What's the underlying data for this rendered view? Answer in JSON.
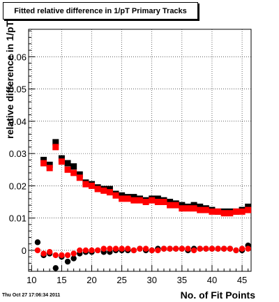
{
  "chart_data": {
    "type": "scatter",
    "title": "Fitted relative difference in 1/pT Primary Tracks",
    "xlabel": "No. of Fit Points",
    "ylabel": "relative difference in 1/pT",
    "xlim": [
      9.5,
      46.5
    ],
    "ylim": [
      -0.0065,
      0.0685
    ],
    "x_ticks": [
      10,
      15,
      20,
      25,
      30,
      35,
      40,
      45
    ],
    "y_ticks": [
      0,
      0.01,
      0.02,
      0.03,
      0.04,
      0.05,
      0.06
    ],
    "y_tick_labels": [
      "0",
      "0.01",
      "0.02",
      "0.03",
      "0.04",
      "0.05",
      "0.06"
    ],
    "grid": true,
    "legend": "none",
    "series": [
      {
        "marker": "square",
        "color": "#000000",
        "x": [
          12,
          13,
          14,
          15,
          16,
          17,
          18,
          19,
          20,
          21,
          22,
          23,
          24,
          25,
          26,
          27,
          28,
          29,
          30,
          31,
          32,
          33,
          34,
          35,
          36,
          37,
          38,
          39,
          40,
          41,
          42,
          43,
          44,
          45,
          46
        ],
        "y": [
          0.028,
          0.0265,
          0.0335,
          0.0285,
          0.027,
          0.026,
          0.0235,
          0.021,
          0.0205,
          0.0195,
          0.019,
          0.019,
          0.0175,
          0.017,
          0.0165,
          0.0165,
          0.016,
          0.0155,
          0.016,
          0.016,
          0.0155,
          0.015,
          0.0145,
          0.014,
          0.0135,
          0.014,
          0.0135,
          0.013,
          0.0125,
          0.012,
          0.012,
          0.012,
          0.012,
          0.0125,
          0.0135
        ]
      },
      {
        "marker": "square",
        "color": "#ff0000",
        "x": [
          12,
          13,
          14,
          15,
          16,
          17,
          18,
          19,
          20,
          21,
          22,
          23,
          24,
          25,
          26,
          27,
          28,
          29,
          30,
          31,
          32,
          33,
          34,
          35,
          36,
          37,
          38,
          39,
          40,
          41,
          42,
          43,
          44,
          45,
          46
        ],
        "y": [
          0.027,
          0.0255,
          0.032,
          0.0275,
          0.025,
          0.024,
          0.0225,
          0.0205,
          0.02,
          0.019,
          0.0185,
          0.018,
          0.017,
          0.016,
          0.016,
          0.0155,
          0.0155,
          0.015,
          0.0155,
          0.015,
          0.015,
          0.014,
          0.014,
          0.013,
          0.013,
          0.013,
          0.0125,
          0.0125,
          0.012,
          0.012,
          0.0115,
          0.0115,
          0.012,
          0.012,
          0.0125
        ]
      },
      {
        "marker": "circle",
        "color": "#000000",
        "x": [
          11,
          12,
          13,
          14,
          15,
          16,
          17,
          18,
          19,
          20,
          21,
          22,
          23,
          24,
          25,
          26,
          27,
          28,
          29,
          30,
          31,
          32,
          33,
          34,
          35,
          36,
          37,
          38,
          39,
          40,
          41,
          42,
          43,
          44,
          45,
          46
        ],
        "y": [
          0.0025,
          -0.0015,
          -0.001,
          -0.0055,
          -0.002,
          -0.0035,
          -0.0025,
          -0.001,
          -0.0005,
          -0.0005,
          0,
          -0.0005,
          -0.0005,
          0,
          0,
          0,
          0,
          0.0005,
          0,
          0,
          0.0005,
          0.0005,
          0.0005,
          0.0005,
          0.0005,
          0,
          0.0005,
          0.0005,
          0.0005,
          0.0005,
          0.0005,
          0.0005,
          0.0005,
          0,
          0,
          0.0015
        ]
      },
      {
        "marker": "circle",
        "color": "#ff0000",
        "x": [
          11,
          12,
          13,
          14,
          15,
          16,
          17,
          18,
          19,
          20,
          21,
          22,
          23,
          24,
          25,
          26,
          27,
          28,
          29,
          30,
          31,
          32,
          33,
          34,
          35,
          36,
          37,
          38,
          39,
          40,
          41,
          42,
          43,
          44,
          45,
          46
        ],
        "y": [
          0,
          -0.001,
          -0.0005,
          -0.0015,
          -0.0015,
          -0.0015,
          -0.001,
          0,
          0,
          0,
          0,
          0.0005,
          0.0005,
          0.0005,
          0.0005,
          0.0005,
          0,
          0.0005,
          0.0005,
          0,
          0,
          0.0005,
          0.0005,
          0.0005,
          0.0005,
          0.0005,
          0,
          0.0005,
          0.0005,
          0.0005,
          0.0005,
          0.0005,
          0.0005,
          0,
          0.0005,
          0.0005
        ]
      }
    ]
  },
  "timestamp": "Thu Oct 27 17:06:34 2011"
}
